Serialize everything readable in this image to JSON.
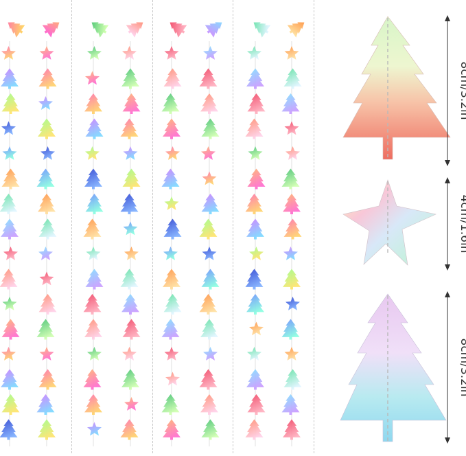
{
  "photo": {
    "subject": "iridescent christmas tree and star paper garland strands",
    "strand_count": 8
  },
  "dimensions": {
    "large_tree_top": "8cm/3.2in",
    "star": "4cm/1.6in",
    "large_tree_bottom": "8cm/3.2in"
  },
  "colors": {
    "background": "#ffffff",
    "divider": "#c8c8c8",
    "dimension_line": "#333333",
    "string": "#b9b9b9"
  }
}
